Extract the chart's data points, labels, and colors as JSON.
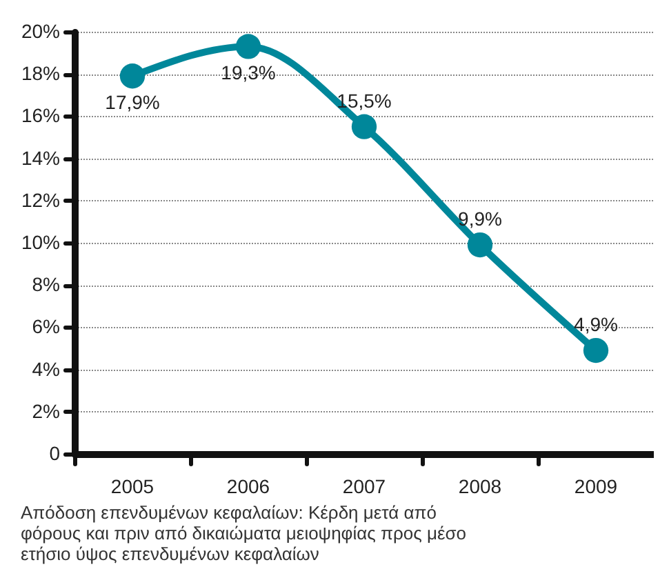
{
  "chart_data": {
    "type": "line",
    "categories": [
      "2005",
      "2006",
      "2007",
      "2008",
      "2009"
    ],
    "series": [
      {
        "color": "#00879a",
        "values": [
          17.9,
          19.3,
          15.5,
          9.9,
          4.9
        ],
        "value_labels": [
          "17,9%",
          "19,3%",
          "15,5%",
          "9,9%",
          "4,9%"
        ]
      }
    ],
    "ylim": [
      0,
      20
    ],
    "yticks": [
      0,
      {
        "value": 2,
        "label": "2%"
      },
      {
        "value": 4,
        "label": "4%"
      },
      {
        "value": 6,
        "label": "6%"
      },
      {
        "value": 8,
        "label": "8%"
      },
      {
        "value": 10,
        "label": "10%"
      },
      {
        "value": 12,
        "label": "12%"
      },
      {
        "value": 14,
        "label": "14%"
      },
      {
        "value": 16,
        "label": "16%"
      },
      {
        "value": 18,
        "label": "18%"
      },
      {
        "value": 20,
        "label": "20%"
      }
    ],
    "grid": "y",
    "marker": "circle",
    "line_style": "solid",
    "annotations": [
      "Απόδοση επενδυμένων κεφαλαίων: Κέρδη μετά από\nφόρους και πριν από δικαιώματα μειοψηφίας προς μέσο\nετήσιο ύψος επενδυμένων κεφαλαίων"
    ]
  }
}
